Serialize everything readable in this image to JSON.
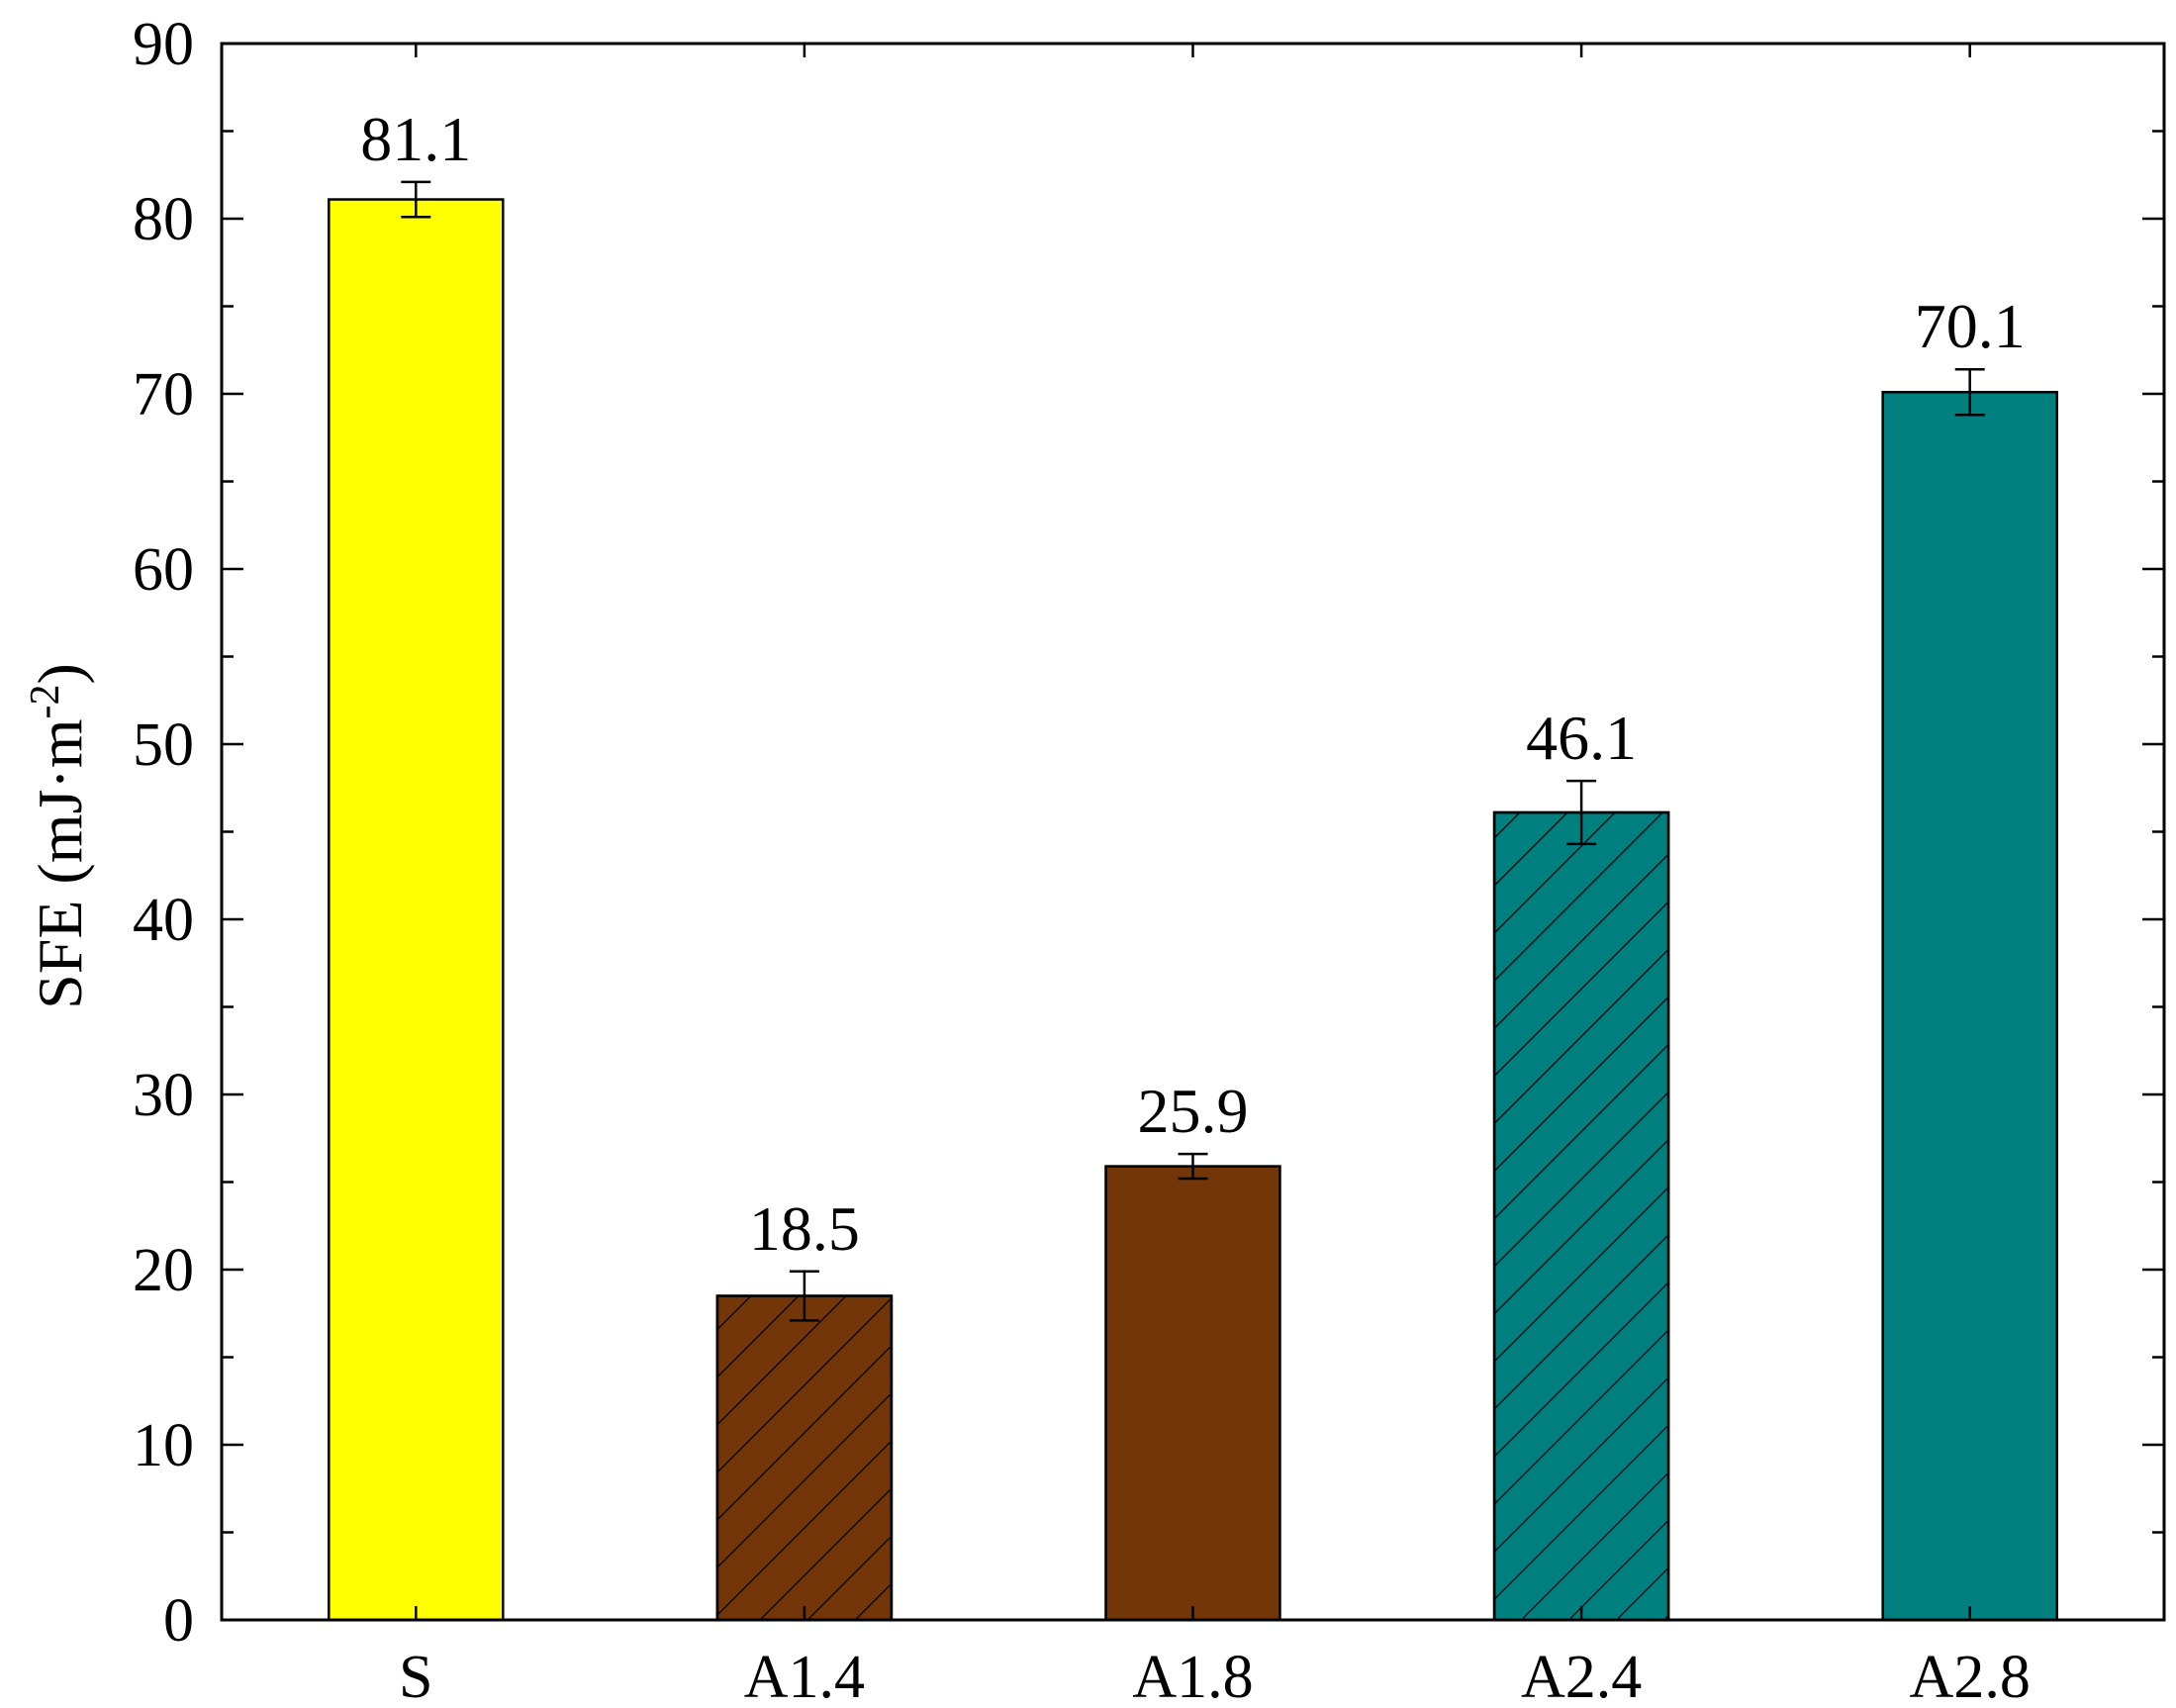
{
  "chart_data": {
    "type": "bar",
    "title": "",
    "xlabel": "",
    "ylabel": "SFE (mJ·m",
    "ylabel_sup": "-2",
    "ylabel_end": ")",
    "ylim": [
      0,
      90
    ],
    "yticks": [
      0,
      10,
      20,
      30,
      40,
      50,
      60,
      70,
      80,
      90
    ],
    "grid": false,
    "legend": "none",
    "categories": [
      "S",
      "A1.4",
      "A1.8",
      "A2.4",
      "A2.8"
    ],
    "values": [
      81.1,
      18.5,
      25.9,
      46.1,
      70.1
    ],
    "data_labels": [
      "81.1",
      "18.5",
      "25.9",
      "46.1",
      "70.1"
    ],
    "errors": [
      1.0,
      1.4,
      0.7,
      1.8,
      1.3
    ],
    "colors": [
      "#FFFF00",
      "#733608",
      "#733608",
      "#007F7F",
      "#007F7F"
    ],
    "hatched": [
      false,
      true,
      false,
      true,
      false
    ]
  }
}
